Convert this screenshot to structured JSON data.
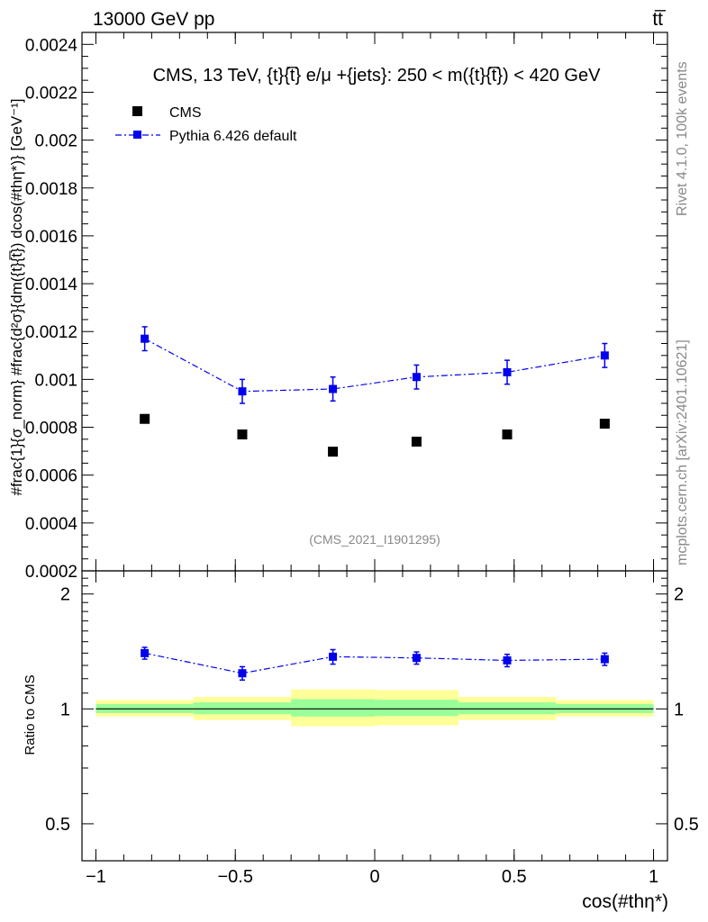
{
  "header": {
    "left_title": "13000 GeV pp",
    "right_title": "tt̅"
  },
  "side_text": {
    "rivet": "Rivet 4.1.0,  100k events",
    "source": "mcplots.cern.ch [arXiv:2401.10621]"
  },
  "colors": {
    "data": "#000000",
    "mc": "#0000ee",
    "band_outer": "#ffff99",
    "band_inner": "#99ff99"
  },
  "chart_data": [
    {
      "type": "scatter",
      "panel": "main",
      "title": "CMS, 13 TeV, {t}{t̅} e/μ +{jets}: 250 < m({t}{t̅}) < 420 GeV",
      "analysis_tag": "(CMS_2021_I1901295)",
      "ylabel": "#frac{1}{σ_norm} #frac{d²σ}{dm({t}{t̅}) dcos(#thη*)} [GeV⁻¹]",
      "xlabel": "",
      "xlim": [
        -1.05,
        1.05
      ],
      "ylim": [
        0.0002,
        0.00245
      ],
      "yticks": [
        "0.0002",
        "0.0004",
        "0.0006",
        "0.0008",
        "0.001",
        "0.0012",
        "0.0014",
        "0.0016",
        "0.0018",
        "0.002",
        "0.0022",
        "0.0024"
      ],
      "ytick_values": [
        0.0002,
        0.0004,
        0.0006,
        0.0008,
        0.001,
        0.0012,
        0.0014,
        0.0016,
        0.0018,
        0.002,
        0.0022,
        0.0024
      ],
      "legend_position": "top-left",
      "series": [
        {
          "name": "CMS",
          "marker": "square",
          "x": [
            -0.825,
            -0.475,
            -0.15,
            0.15,
            0.475,
            0.825
          ],
          "values": [
            0.000835,
            0.00077,
            0.000698,
            0.00074,
            0.00077,
            0.000815
          ]
        },
        {
          "name": "Pythia 6.426 default",
          "marker": "square-line",
          "x": [
            -0.825,
            -0.475,
            -0.15,
            0.15,
            0.475,
            0.825
          ],
          "values": [
            0.00117,
            0.00095,
            0.00096,
            0.00101,
            0.00103,
            0.0011
          ],
          "errors": [
            5e-05,
            5e-05,
            5e-05,
            5e-05,
            5e-05,
            5e-05
          ]
        }
      ]
    },
    {
      "type": "scatter",
      "panel": "ratio",
      "title": "",
      "ylabel": "Ratio to CMS",
      "xlabel": "cos(#thη*)",
      "xlim": [
        -1.05,
        1.05
      ],
      "ylim": [
        0.4,
        2.3
      ],
      "yscale": "log",
      "yticks": [
        "0.5",
        "1",
        "2"
      ],
      "ytick_values": [
        0.5,
        1,
        2
      ],
      "xticks": [
        "−1",
        "−0.5",
        "0",
        "0.5",
        "1"
      ],
      "xtick_values": [
        -1,
        -0.5,
        0,
        0.5,
        1
      ],
      "bands": {
        "edges": [
          -1,
          -0.65,
          -0.3,
          0,
          0.3,
          0.65,
          1
        ],
        "outer": [
          [
            0.955,
            1.055
          ],
          [
            0.935,
            1.075
          ],
          [
            0.9,
            1.125
          ],
          [
            0.905,
            1.12
          ],
          [
            0.935,
            1.075
          ],
          [
            0.955,
            1.055
          ]
        ],
        "inner": [
          [
            0.975,
            1.03
          ],
          [
            0.968,
            1.04
          ],
          [
            0.955,
            1.06
          ],
          [
            0.958,
            1.057
          ],
          [
            0.968,
            1.04
          ],
          [
            0.975,
            1.03
          ]
        ]
      },
      "series": [
        {
          "name": "Pythia 6.426 default",
          "x": [
            -0.825,
            -0.475,
            -0.15,
            0.15,
            0.475,
            0.825
          ],
          "values": [
            1.4,
            1.24,
            1.37,
            1.36,
            1.34,
            1.35
          ],
          "errors": [
            0.05,
            0.05,
            0.06,
            0.05,
            0.05,
            0.05
          ]
        }
      ]
    }
  ]
}
